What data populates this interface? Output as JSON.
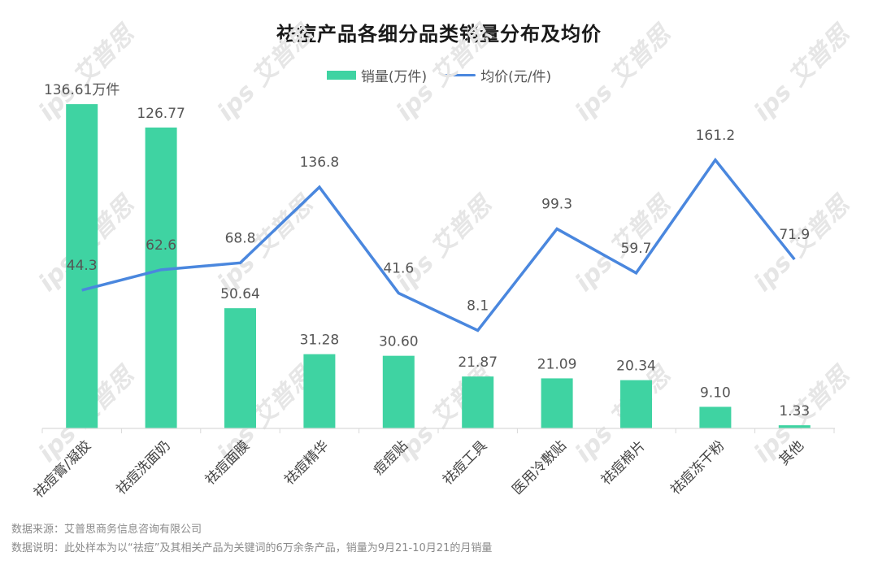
{
  "title": "祛痘产品各细分品类销量分布及均价",
  "legend": {
    "bar_label": "销量(万件)",
    "line_label": "均价(元/件)"
  },
  "colors": {
    "bar": "#3fd3a2",
    "line": "#4a87de",
    "axis": "#d9d9d9",
    "label": "#555555"
  },
  "watermark": "ips 艾普思",
  "notes": {
    "source": "数据来源：艾普思商务信息咨询有限公司",
    "description": "数据说明：此处样本为以“祛痘”及其相关产品为关键词的6万余条产品，销量为9月21-10月21的月销量"
  },
  "chart_data": {
    "type": "bar+line",
    "title": "祛痘产品各细分品类销量分布及均价",
    "categories": [
      "祛痘膏/凝胶",
      "祛痘洗面奶",
      "祛痘面膜",
      "祛痘精华",
      "痘痘贴",
      "祛痘工具",
      "医用冷敷贴",
      "祛痘棉片",
      "祛痘冻干粉",
      "其他"
    ],
    "series": [
      {
        "name": "销量(万件)",
        "type": "bar",
        "values": [
          136.61,
          126.77,
          50.64,
          31.28,
          30.6,
          21.87,
          21.09,
          20.34,
          9.1,
          1.33
        ],
        "labels": [
          "136.61万件",
          "126.77",
          "50.64",
          "31.28",
          "30.60",
          "21.87",
          "21.09",
          "20.34",
          "9.10",
          "1.33"
        ]
      },
      {
        "name": "均价(元/件)",
        "type": "line",
        "values": [
          44.3,
          62.6,
          68.8,
          136.8,
          41.6,
          8.1,
          99.3,
          59.7,
          161.2,
          71.9
        ],
        "labels": [
          "44.3",
          "62.6",
          "68.8",
          "136.8",
          "41.6",
          "8.1",
          "99.3",
          "59.7",
          "161.2",
          "71.9"
        ]
      }
    ],
    "xlabel": "",
    "ylabel": "",
    "grid": false,
    "legend_position": "top",
    "x_tick_rotation": -45
  }
}
